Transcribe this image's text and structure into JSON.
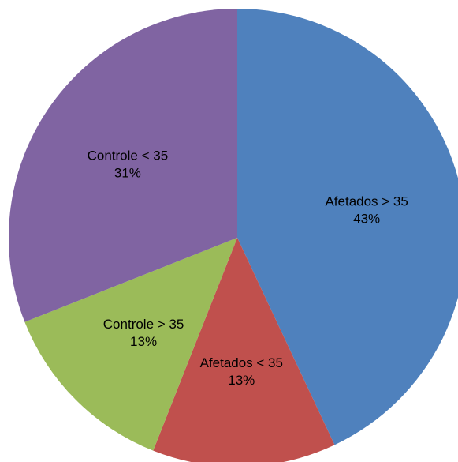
{
  "chart_data": {
    "type": "pie",
    "slices": [
      {
        "label": "Afetados > 35",
        "value": 43,
        "display": "43%",
        "color": "#4f81bd"
      },
      {
        "label": "Afetados < 35",
        "value": 13,
        "display": "13%",
        "color": "#c0504d"
      },
      {
        "label": "Controle > 35",
        "value": 13,
        "display": "13%",
        "color": "#9bbb59"
      },
      {
        "label": "Controle < 35",
        "value": 31,
        "display": "31%",
        "color": "#8064a2"
      }
    ],
    "start": "top",
    "direction": "clockwise",
    "legend": "none",
    "labels_inside": true
  }
}
